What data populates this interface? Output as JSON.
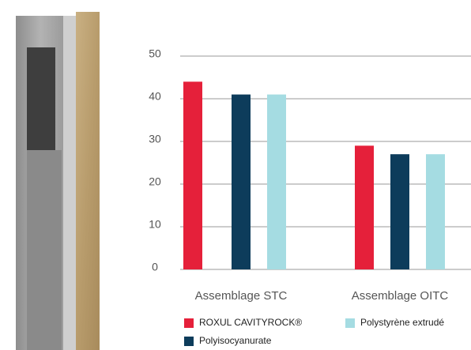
{
  "chart_data": {
    "type": "bar",
    "categories": [
      "Assemblage STC",
      "Assemblage OITC"
    ],
    "series": [
      {
        "name": "ROXUL CAVITYROCK®",
        "color": "#e5203a",
        "values": [
          44,
          29
        ]
      },
      {
        "name": "Polyisocyanurate",
        "color": "#0d3c5b",
        "values": [
          41,
          27
        ]
      },
      {
        "name": "Polystyrène extrudé",
        "color": "#a5dce2",
        "values": [
          41,
          27
        ]
      }
    ],
    "ylim": [
      0,
      50
    ],
    "yticks": [
      0,
      10,
      20,
      30,
      40,
      50
    ],
    "grid": true
  }
}
